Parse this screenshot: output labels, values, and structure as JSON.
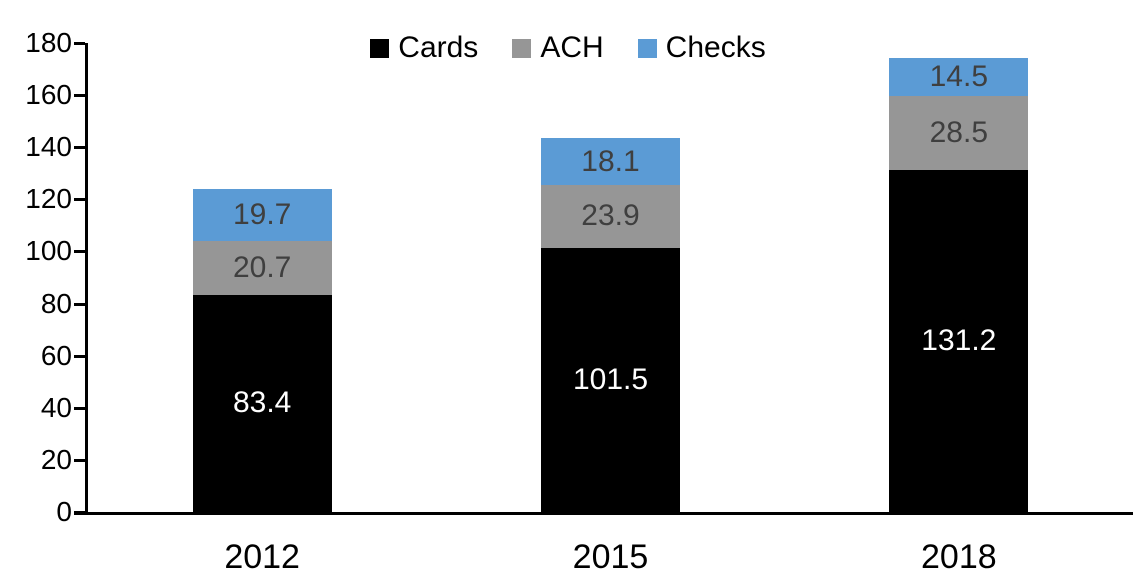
{
  "chart_data": {
    "type": "bar",
    "stacked": true,
    "title": "",
    "xlabel": "",
    "ylabel": "",
    "categories": [
      "2012",
      "2015",
      "2018"
    ],
    "series": [
      {
        "name": "Cards",
        "color": "#000000",
        "label_color": "#ffffff",
        "values": [
          83.4,
          101.5,
          131.2
        ]
      },
      {
        "name": "ACH",
        "color": "#969696",
        "label_color": "#3f3f3f",
        "values": [
          20.7,
          23.9,
          28.5
        ]
      },
      {
        "name": "Checks",
        "color": "#5b9bd5",
        "label_color": "#3f3f3f",
        "values": [
          19.7,
          18.1,
          14.5
        ]
      }
    ],
    "stack_totals": [
      123.8,
      143.5,
      174.2
    ],
    "ylim": [
      0,
      180
    ],
    "yticks": [
      0,
      20,
      40,
      60,
      80,
      100,
      120,
      140,
      160,
      180
    ],
    "grid": false,
    "data_labels": true,
    "legend_position": "top-center",
    "axis_color": "#000000",
    "background_color": "#ffffff"
  }
}
